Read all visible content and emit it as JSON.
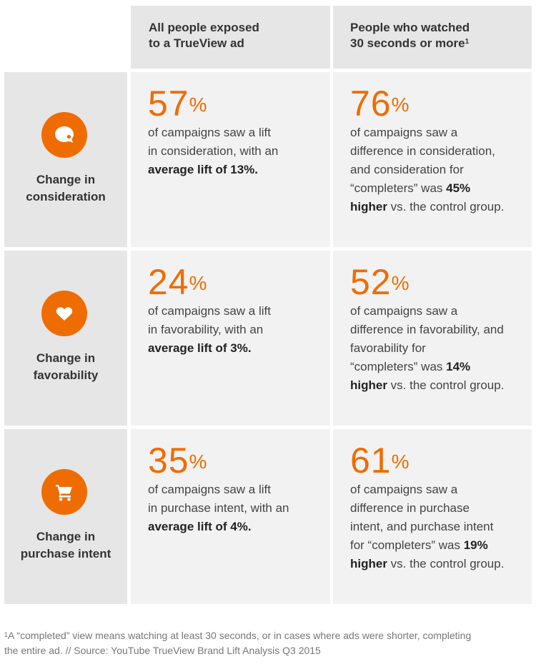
{
  "colors": {
    "accent": "#ef6c00",
    "panel_dark": "#e6e6e6",
    "panel_light": "#f2f2f2"
  },
  "header": {
    "col1": {
      "line1": "All people exposed",
      "line2": "to a TrueView ad"
    },
    "col2": {
      "line1": "People who watched",
      "line2": "30 seconds or more",
      "sup": "1"
    }
  },
  "rows": [
    {
      "icon": "speech-bubble-icon",
      "label": {
        "line1": "Change in",
        "line2": "consideration"
      },
      "all": {
        "number": "57",
        "pct": "%",
        "line1": "of campaigns saw a lift",
        "line2": "in consideration, with an",
        "bold3": "average lift of 13%."
      },
      "watched": {
        "number": "76",
        "pct": "%",
        "line1": "of campaigns saw a",
        "line2": "difference in consideration,",
        "line3": "and consideration for",
        "line4_pre": "“completers” was ",
        "line4_bold": "45%",
        "line5_bold": "higher",
        "line5_post": " vs. the control group."
      }
    },
    {
      "icon": "heart-icon",
      "label": {
        "line1": "Change in",
        "line2": "favorability"
      },
      "all": {
        "number": "24",
        "pct": "%",
        "line1": "of campaigns saw a lift",
        "line2": "in favorability, with an",
        "bold3": "average lift of 3%."
      },
      "watched": {
        "number": "52",
        "pct": "%",
        "line1": "of campaigns saw a",
        "line2": "difference in favorability, and",
        "line3": "favorability for",
        "line4_pre": "“completers” was ",
        "line4_bold": "14%",
        "line5_bold": "higher",
        "line5_post": " vs. the control group."
      }
    },
    {
      "icon": "shopping-cart-icon",
      "label": {
        "line1": "Change in",
        "line2": "purchase intent"
      },
      "all": {
        "number": "35",
        "pct": "%",
        "line1": "of campaigns saw a lift",
        "line2": "in purchase intent, with an",
        "bold3": "average lift of 4%."
      },
      "watched": {
        "number": "61",
        "pct": "%",
        "line1": "of campaigns saw a",
        "line2": "difference in purchase",
        "line3": "intent, and purchase intent",
        "line4_pre": "for “completers” was ",
        "line4_bold": "19%",
        "line5_bold": "higher",
        "line5_post": " vs. the control group."
      }
    }
  ],
  "footnote": {
    "sup": "1",
    "line1": "A “completed” view means watching at least 30 seconds, or in cases where ads were shorter, completing",
    "line2": "the entire ad. // Source: YouTube TrueView Brand Lift Analysis Q3 2015"
  }
}
